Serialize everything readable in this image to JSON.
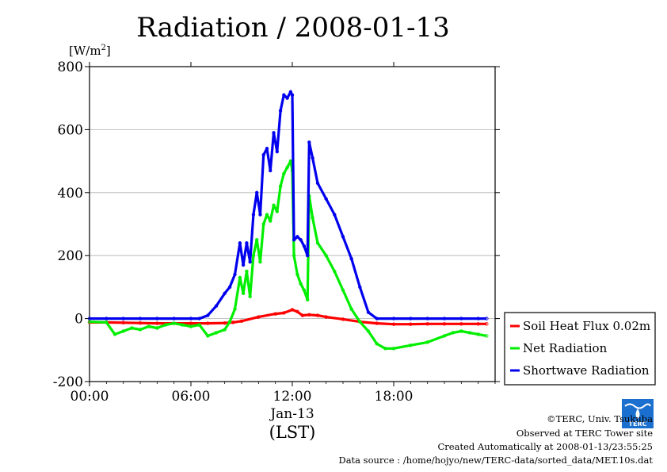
{
  "chart_data": {
    "type": "line",
    "title": "Radiation / 2008-01-13",
    "ylabel_text": "[W/m",
    "ylabel_sup": "2",
    "ylabel_close": "]",
    "xlabel": "(LST)",
    "date_label": "Jan-13",
    "ylim": [
      -200,
      800
    ],
    "xlim": [
      0,
      24
    ],
    "y_ticks": [
      -200,
      0,
      200,
      400,
      600,
      800
    ],
    "x_ticks": [
      {
        "value": 0,
        "label": "00:00"
      },
      {
        "value": 6,
        "label": "06:00"
      },
      {
        "value": 12,
        "label": "12:00"
      },
      {
        "value": 18,
        "label": "18:00"
      }
    ],
    "grid": true,
    "legend_position": "right",
    "series": [
      {
        "name": "Soil Heat Flux 0.02m",
        "color": "#ff0000",
        "x": [
          0,
          1,
          2,
          3,
          4,
          5,
          6,
          7,
          8,
          8.5,
          9,
          10,
          11,
          11.5,
          12,
          12.3,
          12.6,
          13,
          13.5,
          14,
          15,
          16,
          17,
          18,
          19,
          20,
          21,
          22,
          23,
          23.5
        ],
        "values": [
          -12,
          -12,
          -13,
          -14,
          -15,
          -15,
          -15,
          -15,
          -14,
          -12,
          -8,
          5,
          15,
          18,
          28,
          22,
          10,
          12,
          10,
          5,
          -2,
          -10,
          -15,
          -18,
          -18,
          -17,
          -17,
          -17,
          -17,
          -17
        ]
      },
      {
        "name": "Net Radiation",
        "color": "#00ee00",
        "x": [
          0,
          1,
          1.5,
          2,
          2.5,
          3,
          3.5,
          4,
          4.5,
          5,
          5.5,
          6,
          6.5,
          7,
          7.5,
          8,
          8.3,
          8.6,
          8.9,
          9.1,
          9.3,
          9.5,
          9.7,
          9.9,
          10.1,
          10.3,
          10.5,
          10.7,
          10.9,
          11.1,
          11.3,
          11.5,
          11.7,
          11.9,
          12.0,
          12.1,
          12.3,
          12.5,
          12.7,
          12.9,
          13.0,
          13.2,
          13.5,
          14,
          14.5,
          15,
          15.5,
          16,
          16.5,
          17,
          17.5,
          18,
          19,
          20,
          21,
          21.5,
          22,
          22.5,
          23,
          23.5
        ],
        "values": [
          -10,
          -12,
          -50,
          -40,
          -30,
          -35,
          -25,
          -30,
          -20,
          -15,
          -20,
          -25,
          -20,
          -55,
          -45,
          -35,
          -10,
          30,
          130,
          80,
          150,
          70,
          200,
          250,
          180,
          300,
          330,
          310,
          360,
          340,
          420,
          460,
          480,
          500,
          470,
          200,
          140,
          110,
          90,
          60,
          390,
          320,
          240,
          200,
          150,
          90,
          30,
          -10,
          -40,
          -80,
          -95,
          -95,
          -85,
          -75,
          -55,
          -45,
          -40,
          -45,
          -50,
          -55
        ]
      },
      {
        "name": "Shortwave Radiation",
        "color": "#0000ee",
        "x": [
          0,
          1,
          2,
          3,
          4,
          5,
          6,
          6.5,
          7,
          7.5,
          8,
          8.3,
          8.6,
          8.9,
          9.1,
          9.3,
          9.5,
          9.7,
          9.9,
          10.1,
          10.3,
          10.5,
          10.7,
          10.9,
          11.1,
          11.3,
          11.5,
          11.7,
          11.9,
          12.0,
          12.1,
          12.3,
          12.5,
          12.7,
          12.9,
          13.0,
          13.2,
          13.5,
          14,
          14.5,
          15,
          15.5,
          16,
          16.5,
          17,
          18,
          19,
          20,
          21,
          22,
          23,
          23.5
        ],
        "values": [
          0,
          0,
          0,
          0,
          0,
          0,
          0,
          0,
          10,
          40,
          80,
          100,
          140,
          240,
          170,
          240,
          180,
          330,
          400,
          330,
          520,
          540,
          470,
          590,
          530,
          660,
          710,
          700,
          720,
          710,
          250,
          260,
          250,
          230,
          200,
          560,
          510,
          430,
          380,
          330,
          260,
          190,
          100,
          20,
          0,
          0,
          0,
          0,
          0,
          0,
          0,
          0
        ]
      }
    ]
  },
  "footer": {
    "copyright": "©TERC, Univ. Tsukuba",
    "observed": "Observed at TERC Tower site",
    "created": "Created Automatically at 2008-01-13/23:55:25",
    "source": "Data source : /home/hojyo/new/TERC-data/sorted_data/MET.10s.dat"
  },
  "logo": {
    "text": "TERC",
    "color": "#1a6fcf"
  }
}
